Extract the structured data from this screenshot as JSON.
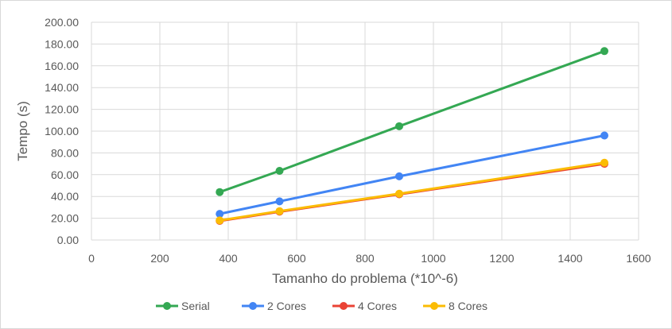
{
  "chart_data": {
    "type": "scatter",
    "xlabel": "Tamanho do problema (*10^-6)",
    "ylabel": "Tempo (s)",
    "xlim": [
      0,
      1600
    ],
    "ylim": [
      0,
      200
    ],
    "x_ticks": [
      "0",
      "200",
      "400",
      "600",
      "800",
      "1000",
      "1200",
      "1400",
      "1600"
    ],
    "y_ticks": [
      "0.00",
      "20.00",
      "40.00",
      "60.00",
      "80.00",
      "100.00",
      "120.00",
      "140.00",
      "160.00",
      "180.00",
      "200.00"
    ],
    "grid": true,
    "legend_position": "bottom",
    "series": [
      {
        "name": "Serial",
        "color": "#34a853",
        "x": [
          375,
          550,
          900,
          1500
        ],
        "y": [
          44,
          63.5,
          104.5,
          173.5
        ]
      },
      {
        "name": "2 Cores",
        "color": "#4285f4",
        "x": [
          375,
          550,
          900,
          1500
        ],
        "y": [
          24,
          35.5,
          58.5,
          96
        ]
      },
      {
        "name": "4 Cores",
        "color": "#ea4335",
        "x": [
          375,
          550,
          900,
          1500
        ],
        "y": [
          17.5,
          26,
          42,
          70
        ]
      },
      {
        "name": "8 Cores",
        "color": "#fbbc04",
        "x": [
          375,
          550,
          900,
          1500
        ],
        "y": [
          18,
          26.5,
          42.5,
          71
        ]
      }
    ]
  }
}
